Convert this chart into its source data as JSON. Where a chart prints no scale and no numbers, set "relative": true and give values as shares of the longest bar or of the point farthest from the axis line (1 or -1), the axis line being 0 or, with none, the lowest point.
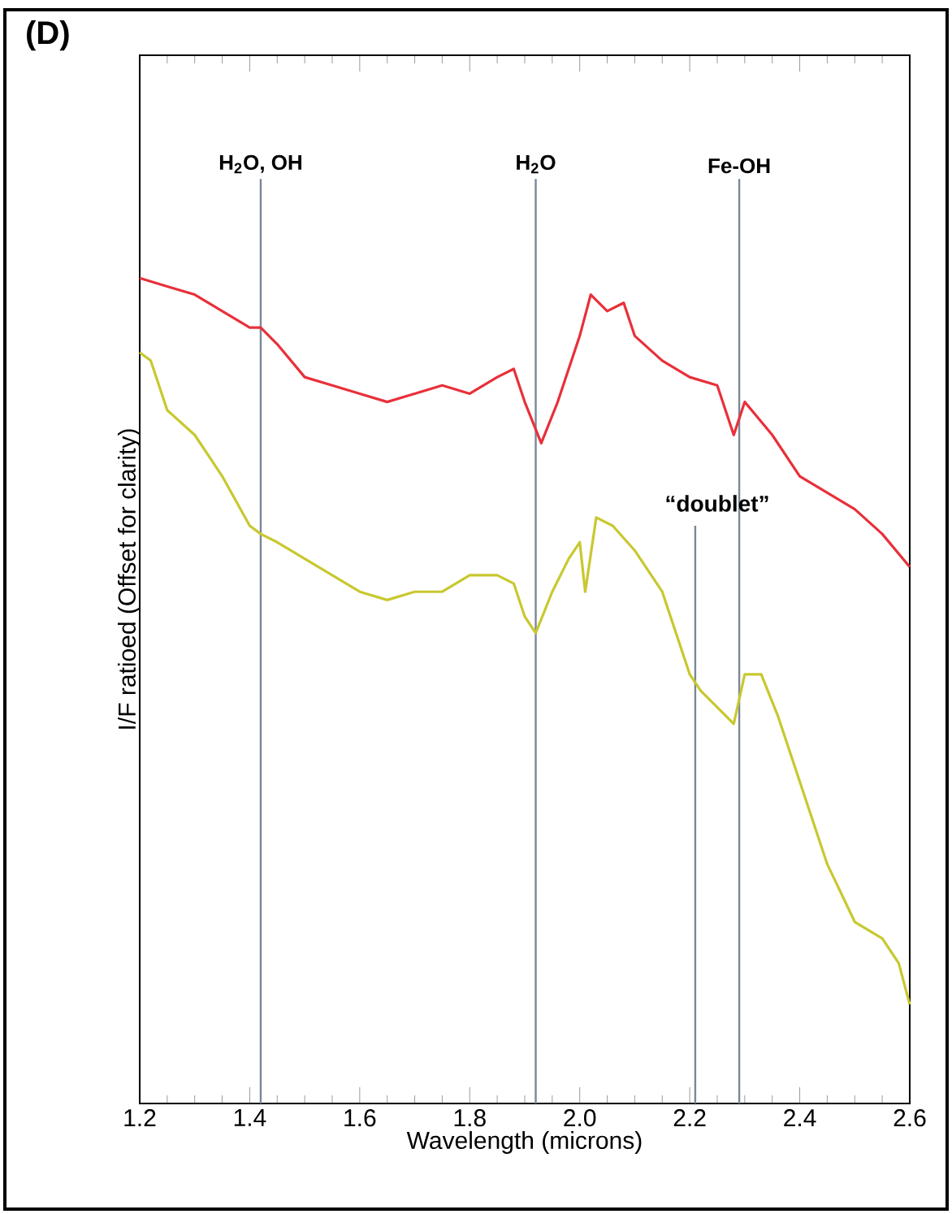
{
  "chart_data": {
    "type": "line",
    "relative": true,
    "xlabel": "Wavelength (microns)",
    "ylabel": "I/F ratioed (Offset for clarity)",
    "xlim": [
      1.2,
      2.6
    ],
    "xticks": [
      1.2,
      1.4,
      1.6,
      1.8,
      {
        "value": 2,
        "label": "2.0"
      },
      2.2,
      2.4,
      2.6
    ],
    "series": [
      {
        "color": "#e8303a",
        "x": [
          1.2,
          1.25,
          1.3,
          1.35,
          1.4,
          1.42,
          1.45,
          1.5,
          1.55,
          1.6,
          1.65,
          1.7,
          1.75,
          1.8,
          1.85,
          1.88,
          1.9,
          1.93,
          1.96,
          2.0,
          2.02,
          2.05,
          2.08,
          2.1,
          2.15,
          2.2,
          2.25,
          2.28,
          2.3,
          2.35,
          2.4,
          2.45,
          2.5,
          2.55,
          2.6
        ],
        "values": [
          1.0,
          0.99,
          0.98,
          0.96,
          0.94,
          0.94,
          0.92,
          0.88,
          0.87,
          0.86,
          0.85,
          0.86,
          0.87,
          0.86,
          0.88,
          0.89,
          0.85,
          0.8,
          0.85,
          0.93,
          0.98,
          0.96,
          0.97,
          0.93,
          0.9,
          0.88,
          0.87,
          0.81,
          0.85,
          0.81,
          0.76,
          0.74,
          0.72,
          0.69,
          0.65
        ]
      },
      {
        "color": "#c8c830",
        "x": [
          1.2,
          1.22,
          1.25,
          1.3,
          1.35,
          1.4,
          1.42,
          1.45,
          1.5,
          1.55,
          1.6,
          1.65,
          1.7,
          1.75,
          1.8,
          1.85,
          1.88,
          1.9,
          1.92,
          1.95,
          1.98,
          2.0,
          2.01,
          2.03,
          2.06,
          2.1,
          2.15,
          2.2,
          2.22,
          2.25,
          2.28,
          2.3,
          2.33,
          2.36,
          2.4,
          2.45,
          2.5,
          2.55,
          2.58,
          2.6
        ],
        "values": [
          0.91,
          0.9,
          0.84,
          0.81,
          0.76,
          0.7,
          0.69,
          0.68,
          0.66,
          0.64,
          0.62,
          0.61,
          0.62,
          0.62,
          0.64,
          0.64,
          0.63,
          0.59,
          0.57,
          0.62,
          0.66,
          0.68,
          0.62,
          0.71,
          0.7,
          0.67,
          0.62,
          0.52,
          0.5,
          0.48,
          0.46,
          0.52,
          0.52,
          0.47,
          0.39,
          0.29,
          0.22,
          0.2,
          0.17,
          0.12
        ]
      }
    ],
    "ref_lines": [
      {
        "axis": "x",
        "value": 1.42,
        "label": "H$_{2}$O, OH",
        "color": "#7a8799"
      },
      {
        "axis": "x",
        "value": 1.92,
        "label": "H$_{2}$O",
        "color": "#7a8799"
      },
      {
        "axis": "x",
        "value": 2.29,
        "label": "Fe-OH",
        "color": "#7a8799"
      },
      {
        "axis": "x",
        "value": 2.21,
        "label": null,
        "color": "#7a8799"
      }
    ],
    "annotations": [
      "(D)",
      "“doublet”"
    ]
  }
}
